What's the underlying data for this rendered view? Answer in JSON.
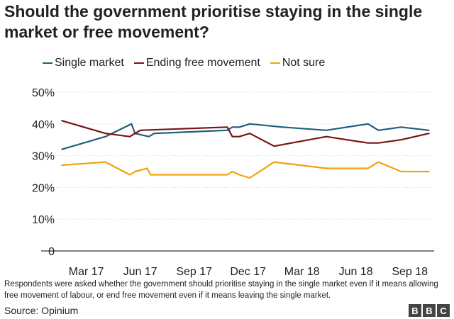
{
  "chart_data": {
    "type": "line",
    "title": "Should the government prioritise staying in the single market or free movement?",
    "x": [
      0,
      2.5,
      3.5,
      4.2,
      4.5,
      5.0,
      9.5,
      9.8,
      10.2,
      10.8,
      11.3,
      13.5,
      15.2,
      16.6,
      19.0,
      19.5,
      20.2,
      21.1
    ],
    "x_ticks": [
      {
        "pos": 1.4,
        "label": "Mar 17"
      },
      {
        "pos": 4.5,
        "label": "Jun 17"
      },
      {
        "pos": 7.6,
        "label": "Sep 17"
      },
      {
        "pos": 10.7,
        "label": "Dec 17"
      },
      {
        "pos": 13.8,
        "label": "Mar 18"
      },
      {
        "pos": 16.9,
        "label": "Jun 18"
      },
      {
        "pos": 20.0,
        "label": "Sep 18"
      }
    ],
    "xlim": [
      -0.3,
      21.4
    ],
    "ylim": [
      0,
      50
    ],
    "y_ticks": [
      "0",
      "10%",
      "20%",
      "30%",
      "40%",
      "50%"
    ],
    "series": [
      {
        "name": "Single market",
        "color": "#1f5e7e",
        "points": [
          [
            0,
            32
          ],
          [
            2.5,
            36
          ],
          [
            4.0,
            40
          ],
          [
            4.2,
            37
          ],
          [
            5.0,
            36
          ],
          [
            5.3,
            37
          ],
          [
            9.5,
            38
          ],
          [
            9.8,
            39
          ],
          [
            10.2,
            39
          ],
          [
            10.8,
            40
          ],
          [
            12.7,
            39
          ],
          [
            15.2,
            38
          ],
          [
            17.6,
            40
          ],
          [
            18.2,
            38
          ],
          [
            19.5,
            39
          ],
          [
            21.1,
            38
          ]
        ]
      },
      {
        "name": "Ending free movement",
        "color": "#7a1414",
        "points": [
          [
            0,
            41
          ],
          [
            2.5,
            37
          ],
          [
            3.9,
            36
          ],
          [
            4.5,
            38
          ],
          [
            9.5,
            39
          ],
          [
            9.8,
            36
          ],
          [
            10.2,
            36
          ],
          [
            10.8,
            37
          ],
          [
            12.2,
            33
          ],
          [
            15.2,
            36
          ],
          [
            17.6,
            34
          ],
          [
            18.2,
            34
          ],
          [
            19.5,
            35
          ],
          [
            21.1,
            37
          ]
        ]
      },
      {
        "name": "Not sure",
        "color": "#f0a30a",
        "points": [
          [
            0,
            27
          ],
          [
            2.5,
            28
          ],
          [
            3.9,
            24
          ],
          [
            4.2,
            25
          ],
          [
            4.9,
            26
          ],
          [
            5.1,
            24
          ],
          [
            9.5,
            24
          ],
          [
            9.8,
            25
          ],
          [
            10.2,
            24
          ],
          [
            10.8,
            23
          ],
          [
            12.2,
            28
          ],
          [
            15.2,
            26
          ],
          [
            17.6,
            26
          ],
          [
            18.2,
            28
          ],
          [
            19.5,
            25
          ],
          [
            21.1,
            25
          ]
        ]
      }
    ]
  },
  "note": "Respondents were asked whether the government should prioritise staying in the single market even if it means allowing free movement of labour, or end free movement even if it means leaving the single market.",
  "source": "Source: Opinium",
  "logo": [
    "B",
    "B",
    "C"
  ]
}
